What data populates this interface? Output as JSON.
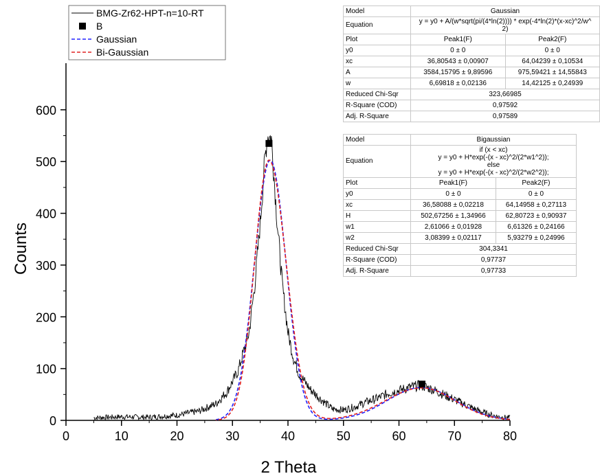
{
  "chart_data": {
    "type": "line",
    "xlabel": "2 Theta",
    "ylabel": "Counts",
    "xlim": [
      0,
      80
    ],
    "ylim": [
      0,
      690
    ],
    "xticks": [
      0,
      10,
      20,
      30,
      40,
      50,
      60,
      70,
      80
    ],
    "yticks": [
      0,
      100,
      200,
      300,
      400,
      500,
      600
    ],
    "grid": false,
    "legend_position": "top-left",
    "legend": [
      {
        "label": "BMG-Zr62-HPT-n=10-RT",
        "style": "solid",
        "color": "#000000"
      },
      {
        "label": "B",
        "style": "square-marker",
        "color": "#000000"
      },
      {
        "label": "Gaussian",
        "style": "dashed",
        "color": "#2020ff"
      },
      {
        "label": "Bi-Gaussian",
        "style": "dashed",
        "color": "#e02020"
      }
    ],
    "markers_B": [
      {
        "x": 36.58,
        "y": 535
      },
      {
        "x": 64.15,
        "y": 70
      }
    ],
    "series": [
      {
        "name": "BMG-Zr62-HPT-n=10-RT",
        "color": "#000000",
        "points": [
          [
            5,
            5
          ],
          [
            10,
            7
          ],
          [
            15,
            6
          ],
          [
            20,
            10
          ],
          [
            24,
            18
          ],
          [
            27,
            32
          ],
          [
            29,
            55
          ],
          [
            31,
            95
          ],
          [
            33,
            170
          ],
          [
            34,
            260
          ],
          [
            35,
            380
          ],
          [
            35.8,
            500
          ],
          [
            36.3,
            550
          ],
          [
            37,
            545
          ],
          [
            37.5,
            470
          ],
          [
            38,
            390
          ],
          [
            39,
            260
          ],
          [
            40,
            170
          ],
          [
            41,
            120
          ],
          [
            42,
            90
          ],
          [
            44,
            60
          ],
          [
            46,
            40
          ],
          [
            48,
            22
          ],
          [
            50,
            20
          ],
          [
            52,
            26
          ],
          [
            54,
            35
          ],
          [
            56,
            42
          ],
          [
            58,
            52
          ],
          [
            60,
            58
          ],
          [
            62,
            64
          ],
          [
            64,
            68
          ],
          [
            66,
            60
          ],
          [
            68,
            50
          ],
          [
            70,
            40
          ],
          [
            72,
            30
          ],
          [
            74,
            20
          ],
          [
            76,
            12
          ],
          [
            78,
            7
          ],
          [
            80,
            5
          ]
        ]
      },
      {
        "name": "Gaussian",
        "color": "#2020ff",
        "fit": {
          "y0": 0,
          "peaks": [
            {
              "xc": 36.80543,
              "A": 3584.15795,
              "w": 6.69818
            },
            {
              "xc": 64.04239,
              "A": 975.59421,
              "w": 14.42125
            }
          ]
        }
      },
      {
        "name": "Bi-Gaussian",
        "color": "#e02020",
        "fit": {
          "y0": 0,
          "peaks": [
            {
              "xc": 36.58088,
              "H": 502.67256,
              "w1": 2.61066,
              "w2": 3.08399
            },
            {
              "xc": 64.14958,
              "H": 62.80723,
              "w1": 6.61326,
              "w2": 5.93279
            }
          ]
        }
      }
    ]
  },
  "table_gaussian": {
    "model_label": "Model",
    "model_value": "Gaussian",
    "equation_label": "Equation",
    "equation_lines": [
      "y = y0 + A/(w*sqrt(pi/(4*ln(2)))) * exp(-4*ln(2)*(x-xc)^2/w^",
      "2)"
    ],
    "plot_label": "Plot",
    "peak1": "Peak1(F)",
    "peak2": "Peak2(F)",
    "rows": [
      {
        "label": "y0",
        "p1": "0 ± 0",
        "p2": "0 ± 0"
      },
      {
        "label": "xc",
        "p1": "36,80543 ± 0,00907",
        "p2": "64,04239 ± 0,10534"
      },
      {
        "label": "A",
        "p1": "3584,15795 ± 9,89596",
        "p2": "975,59421 ± 14,55843"
      },
      {
        "label": "w",
        "p1": "6,69818 ± 0,02136",
        "p2": "14,42125 ± 0,24939"
      }
    ],
    "stats": [
      {
        "label": "Reduced Chi-Sqr",
        "value": "323,66985"
      },
      {
        "label": "R-Square (COD)",
        "value": "0,97592"
      },
      {
        "label": "Adj. R-Square",
        "value": "0,97589"
      }
    ]
  },
  "table_bigaussian": {
    "model_label": "Model",
    "model_value": "Bigaussian",
    "equation_label": "Equation",
    "equation_lines": [
      "if (x < xc)",
      "y = y0 + H*exp(-(x - xc)^2/(2*w1^2));",
      "else",
      "y = y0 + H*exp(-(x - xc)^2/(2*w2^2));"
    ],
    "plot_label": "Plot",
    "peak1": "Peak1(F)",
    "peak2": "Peak2(F)",
    "rows": [
      {
        "label": "y0",
        "p1": "0 ± 0",
        "p2": "0 ± 0"
      },
      {
        "label": "xc",
        "p1": "36,58088 ± 0,02218",
        "p2": "64,14958 ± 0,27113"
      },
      {
        "label": "H",
        "p1": "502,67256 ± 1,34966",
        "p2": "62,80723 ± 0,90937"
      },
      {
        "label": "w1",
        "p1": "2,61066 ± 0,01928",
        "p2": "6,61326 ± 0,24166"
      },
      {
        "label": "w2",
        "p1": "3,08399 ± 0,02117",
        "p2": "5,93279 ± 0,24996"
      }
    ],
    "stats": [
      {
        "label": "Reduced Chi-Sqr",
        "value": "304,3341"
      },
      {
        "label": "R-Square (COD)",
        "value": "0,97737"
      },
      {
        "label": "Adj. R-Square",
        "value": "0,97733"
      }
    ]
  }
}
